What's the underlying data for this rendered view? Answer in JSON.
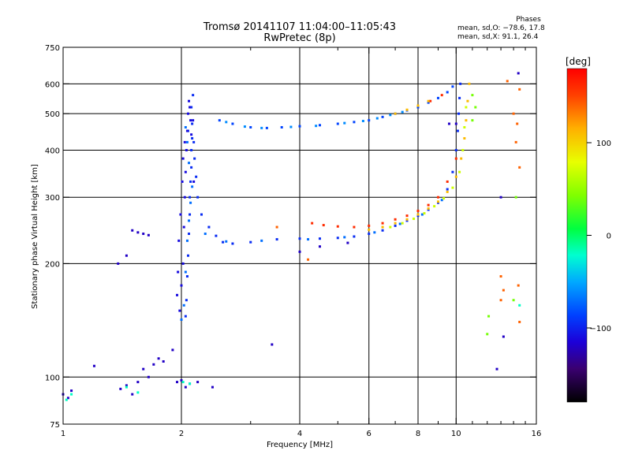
{
  "header": {
    "title_line1": "Tromsø 20141107 11:04:00–11:05:43",
    "title_line2": "RwPretec (8p)"
  },
  "phase_box": {
    "heading": "Phases",
    "line_o": "mean, sd,O:  −78.6, 17.8",
    "line_x": "mean, sd,X:   91.1, 26.4"
  },
  "colorbar": {
    "unit_label": "[deg]",
    "ticks": [
      {
        "value": 100,
        "label": "100"
      },
      {
        "value": 0,
        "label": "0"
      },
      {
        "value": -100,
        "label": "−100"
      }
    ],
    "range": [
      -180,
      180
    ]
  },
  "chart_data": {
    "type": "scatter",
    "xlabel": "Frequency [MHz]",
    "ylabel": "Stationary phase Virtual Height [km]",
    "xscale": "log",
    "yscale": "log",
    "xlim": [
      1,
      16
    ],
    "ylim": [
      75,
      750
    ],
    "x_ticks": [
      {
        "value": 1,
        "label": "1"
      },
      {
        "value": 2,
        "label": "2"
      },
      {
        "value": 4,
        "label": "4"
      },
      {
        "value": 6,
        "label": "6"
      },
      {
        "value": 8,
        "label": "8"
      },
      {
        "value": 10,
        "label": "10"
      },
      {
        "value": 16,
        "label": "16"
      }
    ],
    "x_minor": [
      3,
      5,
      7,
      9,
      11,
      12,
      13,
      14,
      15
    ],
    "x_grid": [
      2,
      4,
      6,
      8,
      10
    ],
    "y_ticks": [
      {
        "value": 75,
        "label": "75"
      },
      {
        "value": 100,
        "label": "100"
      },
      {
        "value": 200,
        "label": "200"
      },
      {
        "value": 300,
        "label": "300"
      },
      {
        "value": 400,
        "label": "400"
      },
      {
        "value": 500,
        "label": "500"
      },
      {
        "value": 600,
        "label": "600"
      },
      {
        "value": 750,
        "label": "750"
      }
    ],
    "y_grid": [
      100,
      200,
      300,
      400,
      500,
      600
    ],
    "grid": true,
    "series": [
      {
        "phase": -95,
        "points": [
          [
            2.05,
            145
          ],
          [
            2.06,
            160
          ],
          [
            2.07,
            185
          ],
          [
            2.08,
            210
          ],
          [
            2.09,
            240
          ],
          [
            2.1,
            270
          ],
          [
            2.1,
            300
          ],
          [
            2.11,
            330
          ],
          [
            2.12,
            360
          ],
          [
            2.12,
            400
          ],
          [
            2.13,
            430
          ],
          [
            2.13,
            470
          ],
          [
            2.12,
            520
          ],
          [
            2.14,
            560
          ],
          [
            2.08,
            450
          ],
          [
            2.15,
            420
          ],
          [
            2.16,
            380
          ],
          [
            2.18,
            340
          ],
          [
            2.2,
            300
          ],
          [
            2.25,
            270
          ],
          [
            2.35,
            250
          ],
          [
            2.45,
            237
          ],
          [
            2.55,
            228
          ],
          [
            2.7,
            226
          ],
          [
            3.0,
            228
          ],
          [
            3.5,
            232
          ],
          [
            4.0,
            233
          ],
          [
            4.5,
            233
          ],
          [
            5.0,
            234
          ],
          [
            5.5,
            236
          ],
          [
            6.0,
            240
          ],
          [
            6.5,
            245
          ],
          [
            7.0,
            252
          ],
          [
            7.5,
            260
          ],
          [
            8.0,
            268
          ],
          [
            8.5,
            278
          ],
          [
            9.0,
            290
          ],
          [
            9.5,
            315
          ],
          [
            9.8,
            350
          ],
          [
            10.0,
            400
          ],
          [
            10.1,
            450
          ],
          [
            10.15,
            500
          ],
          [
            10.2,
            550
          ],
          [
            10.25,
            600
          ]
        ]
      },
      {
        "phase": -110,
        "points": [
          [
            1.98,
            150
          ],
          [
            2.0,
            175
          ],
          [
            2.02,
            200
          ],
          [
            2.03,
            250
          ],
          [
            2.04,
            300
          ],
          [
            2.05,
            350
          ],
          [
            2.06,
            400
          ],
          [
            2.07,
            450
          ],
          [
            2.08,
            500
          ],
          [
            2.04,
            420
          ],
          [
            2.02,
            380
          ],
          [
            2.01,
            330
          ],
          [
            1.99,
            270
          ],
          [
            1.97,
            230
          ],
          [
            1.96,
            190
          ],
          [
            1.95,
            165
          ],
          [
            2.12,
            440
          ],
          [
            2.11,
            480
          ],
          [
            2.1,
            520
          ],
          [
            2.09,
            540
          ],
          [
            2.14,
            480
          ],
          [
            2.15,
            330
          ]
        ]
      },
      {
        "phase": -85,
        "points": [
          [
            2.5,
            480
          ],
          [
            2.7,
            470
          ],
          [
            3.0,
            460
          ],
          [
            3.3,
            458
          ],
          [
            3.6,
            460
          ],
          [
            4.0,
            463
          ],
          [
            4.5,
            466
          ],
          [
            5.0,
            470
          ],
          [
            5.5,
            475
          ],
          [
            6.0,
            480
          ],
          [
            6.5,
            490
          ],
          [
            7.0,
            500
          ],
          [
            7.5,
            510
          ],
          [
            8.0,
            520
          ],
          [
            8.5,
            535
          ],
          [
            9.0,
            550
          ],
          [
            9.5,
            570
          ],
          [
            9.8,
            590
          ]
        ]
      },
      {
        "phase": -60,
        "points": [
          [
            2.6,
            475
          ],
          [
            2.9,
            462
          ],
          [
            3.2,
            458
          ],
          [
            3.8,
            461
          ],
          [
            4.4,
            464
          ],
          [
            5.2,
            472
          ],
          [
            5.8,
            478
          ],
          [
            6.3,
            486
          ],
          [
            6.8,
            496
          ],
          [
            7.3,
            505
          ]
        ]
      },
      {
        "phase": -70,
        "points": [
          [
            2.0,
            142
          ],
          [
            2.03,
            155
          ],
          [
            2.05,
            190
          ],
          [
            2.07,
            230
          ],
          [
            2.09,
            260
          ],
          [
            2.11,
            290
          ],
          [
            2.13,
            320
          ],
          [
            2.09,
            370
          ],
          [
            2.07,
            420
          ],
          [
            2.05,
            460
          ],
          [
            2.3,
            240
          ],
          [
            2.6,
            229
          ],
          [
            3.2,
            230
          ],
          [
            4.2,
            232
          ],
          [
            5.2,
            235
          ],
          [
            6.2,
            242
          ],
          [
            7.2,
            255
          ],
          [
            8.2,
            270
          ],
          [
            9.2,
            295
          ]
        ]
      },
      {
        "phase": 160,
        "points": [
          [
            4.3,
            256
          ],
          [
            4.6,
            253
          ],
          [
            5.0,
            251
          ],
          [
            5.5,
            250
          ],
          [
            6.0,
            252
          ],
          [
            6.5,
            256
          ],
          [
            7.0,
            262
          ],
          [
            7.5,
            268
          ],
          [
            8.0,
            276
          ],
          [
            8.5,
            286
          ],
          [
            9.0,
            300
          ],
          [
            9.5,
            330
          ],
          [
            10.0,
            380
          ],
          [
            8.6,
            540
          ],
          [
            9.2,
            560
          ]
        ]
      },
      {
        "phase": 110,
        "points": [
          [
            6.0,
            246
          ],
          [
            6.5,
            250
          ],
          [
            7.0,
            256
          ],
          [
            7.5,
            262
          ],
          [
            8.0,
            270
          ],
          [
            8.5,
            280
          ],
          [
            9.0,
            292
          ],
          [
            9.5,
            310
          ],
          [
            10.0,
            340
          ],
          [
            10.3,
            380
          ],
          [
            10.5,
            430
          ],
          [
            10.6,
            480
          ],
          [
            10.7,
            540
          ],
          [
            10.8,
            600
          ],
          [
            7.0,
            500
          ],
          [
            7.5,
            512
          ],
          [
            8.0,
            525
          ],
          [
            8.5,
            540
          ]
        ]
      },
      {
        "phase": 70,
        "points": [
          [
            6.8,
            250
          ],
          [
            7.3,
            256
          ],
          [
            7.8,
            263
          ],
          [
            8.3,
            272
          ],
          [
            8.8,
            284
          ],
          [
            9.3,
            298
          ],
          [
            9.8,
            318
          ],
          [
            10.2,
            350
          ],
          [
            10.4,
            400
          ],
          [
            10.5,
            460
          ],
          [
            10.6,
            520
          ]
        ]
      },
      {
        "phase": -120,
        "points": [
          [
            1.0,
            90
          ],
          [
            1.03,
            88
          ],
          [
            1.05,
            92
          ],
          [
            1.2,
            107
          ],
          [
            1.4,
            93
          ],
          [
            1.45,
            95
          ],
          [
            1.5,
            90
          ],
          [
            1.55,
            97
          ],
          [
            1.6,
            105
          ],
          [
            1.65,
            100
          ],
          [
            1.7,
            108
          ],
          [
            1.75,
            112
          ],
          [
            1.8,
            110
          ],
          [
            1.9,
            118
          ],
          [
            1.95,
            97
          ],
          [
            2.0,
            98
          ],
          [
            2.05,
            94
          ],
          [
            2.1,
            96
          ],
          [
            2.2,
            97
          ],
          [
            2.4,
            94
          ],
          [
            1.5,
            245
          ],
          [
            1.55,
            242
          ],
          [
            1.6,
            240
          ],
          [
            1.65,
            238
          ],
          [
            1.45,
            210
          ],
          [
            1.38,
            200
          ],
          [
            3.4,
            122
          ],
          [
            4.0,
            215
          ],
          [
            4.5,
            222
          ],
          [
            5.3,
            227
          ],
          [
            9.6,
            470
          ],
          [
            10.0,
            470
          ],
          [
            12.7,
            105
          ],
          [
            13.2,
            128
          ],
          [
            13.0,
            300
          ],
          [
            14.4,
            640
          ]
        ]
      },
      {
        "phase": 140,
        "points": [
          [
            13.0,
            185
          ],
          [
            13.2,
            170
          ],
          [
            13.0,
            160
          ],
          [
            13.5,
            610
          ],
          [
            14.2,
            420
          ],
          [
            14.3,
            470
          ],
          [
            14.0,
            500
          ],
          [
            14.5,
            580
          ],
          [
            14.5,
            360
          ],
          [
            14.4,
            175
          ],
          [
            14.5,
            140
          ],
          [
            3.5,
            250
          ],
          [
            4.2,
            205
          ]
        ]
      },
      {
        "phase": 40,
        "points": [
          [
            11.0,
            560
          ],
          [
            11.2,
            520
          ],
          [
            11.0,
            480
          ],
          [
            14.0,
            160
          ],
          [
            14.2,
            300
          ],
          [
            12.0,
            130
          ],
          [
            12.1,
            145
          ]
        ]
      },
      {
        "phase": -20,
        "points": [
          [
            1.02,
            87
          ],
          [
            1.05,
            90
          ],
          [
            1.45,
            94
          ],
          [
            1.55,
            91
          ],
          [
            2.02,
            97
          ],
          [
            2.1,
            96
          ],
          [
            14.5,
            155
          ]
        ]
      }
    ]
  }
}
